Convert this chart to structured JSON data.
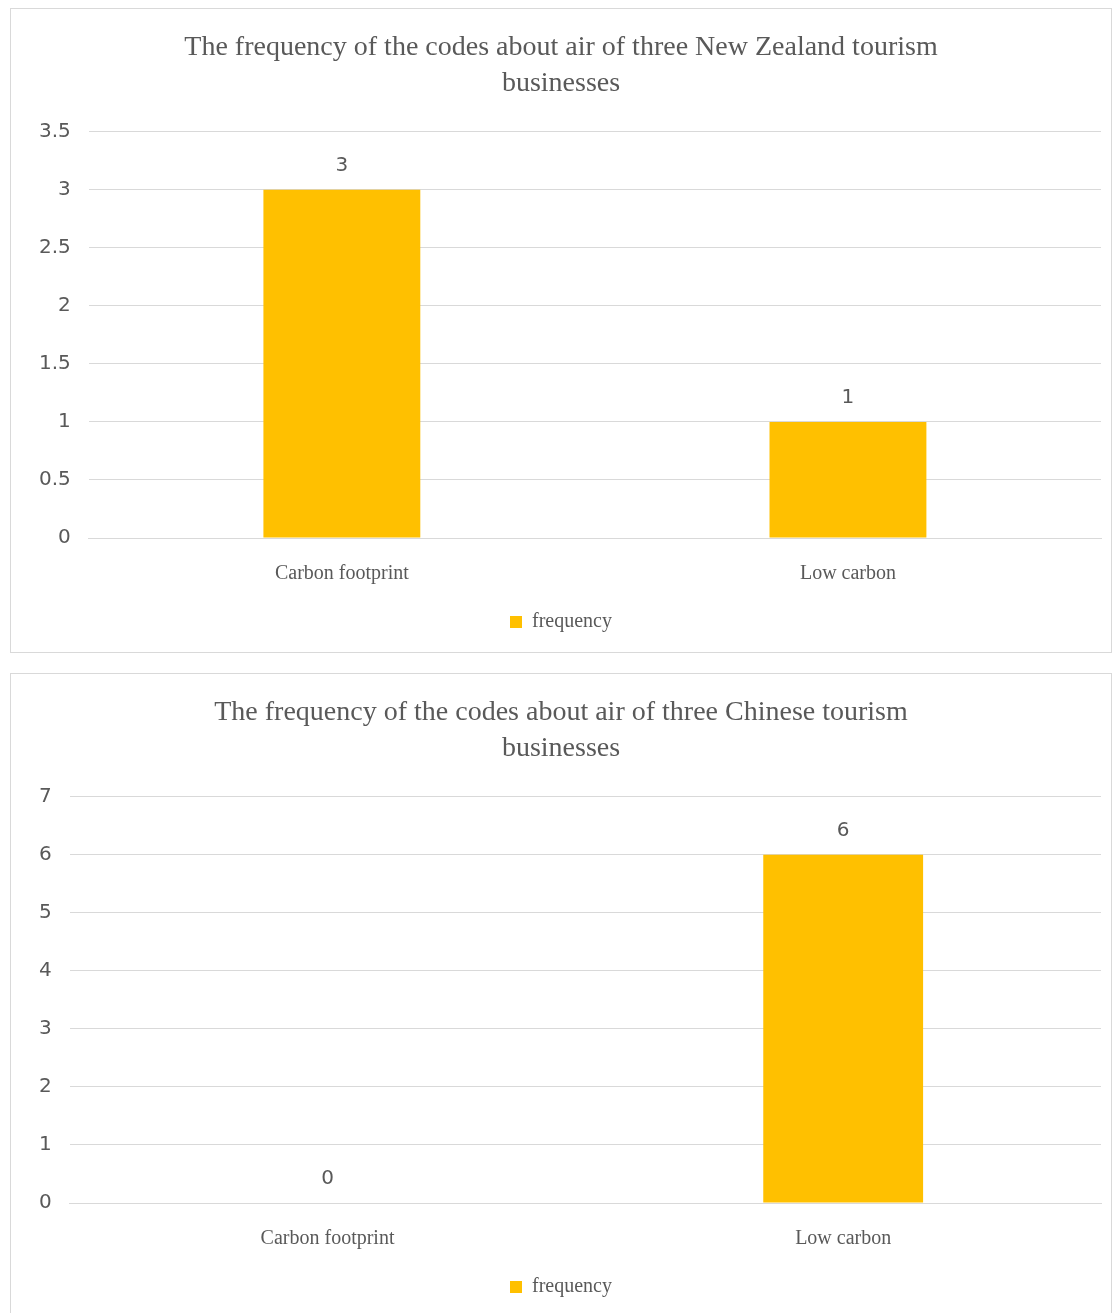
{
  "chart_data": [
    {
      "type": "bar",
      "title": "The frequency of the codes about air of three New Zealand tourism businesses",
      "categories": [
        "Carbon footprint",
        "Low carbon"
      ],
      "series": [
        {
          "name": "frequency",
          "color": "#ffc000",
          "values": [
            3,
            1
          ]
        }
      ],
      "ylim": [
        0,
        3.5
      ],
      "yticks": [
        0,
        0.5,
        1,
        1.5,
        2,
        2.5,
        3,
        3.5
      ],
      "grid": "y",
      "legend": "bottom",
      "data_labels": true
    },
    {
      "type": "bar",
      "title": "The frequency of the codes about air of three Chinese tourism businesses",
      "categories": [
        "Carbon footprint",
        "Low carbon"
      ],
      "series": [
        {
          "name": "frequency",
          "color": "#ffc000",
          "values": [
            0,
            6
          ]
        }
      ],
      "ylim": [
        0,
        7
      ],
      "yticks": [
        0,
        1,
        2,
        3,
        4,
        5,
        6,
        7
      ],
      "grid": "y",
      "legend": "bottom",
      "data_labels": true
    }
  ]
}
